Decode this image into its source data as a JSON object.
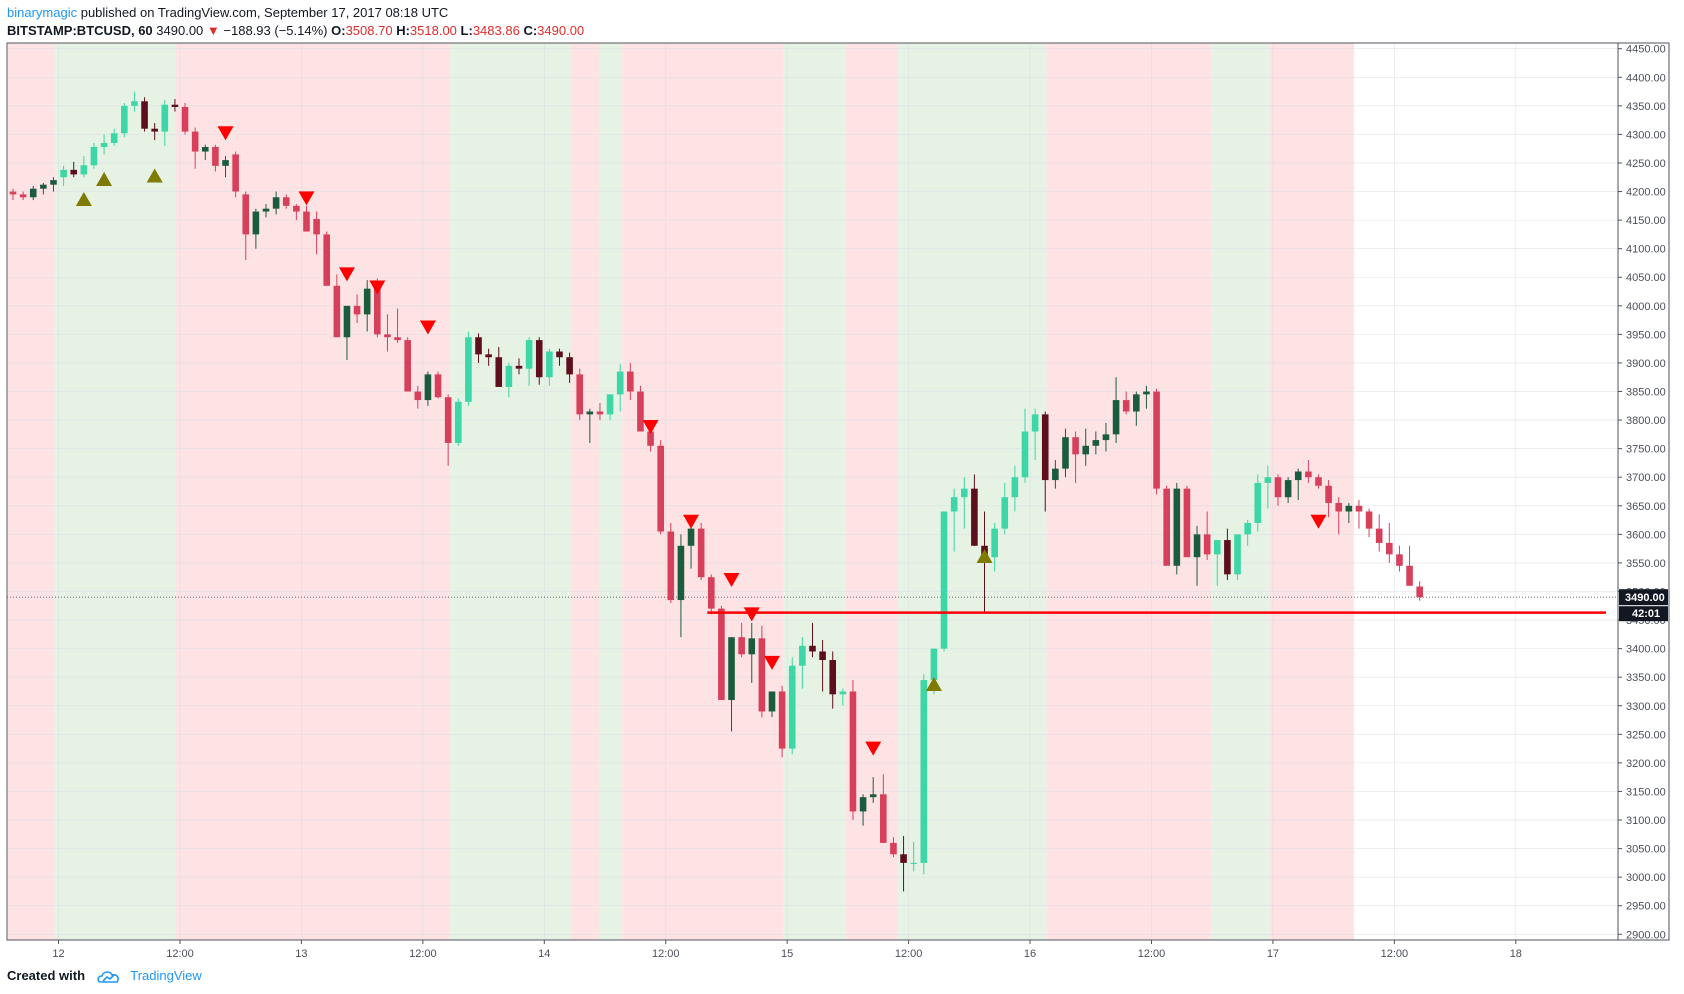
{
  "header": {
    "author": "binarymagic",
    "published": "published on TradingView.com, September 17, 2017 08:18 UTC",
    "symbol": "BITSTAMP:BTCUSD, 60",
    "last": "3490.00",
    "change_arrow": "▼",
    "change": "−188.93 (−5.14%)",
    "o_label": "O:",
    "o": "3508.70",
    "h_label": "H:",
    "h": "3518.00",
    "l_label": "L:",
    "l": "3483.86",
    "c_label": "C:",
    "c": "3490.00"
  },
  "footer": {
    "created": "Created with",
    "brand": "TradingView",
    "logo_icon": "tradingview-cloud-icon"
  },
  "colors": {
    "up": "#3dd6a6",
    "down": "#d6405b",
    "up_dark": "#1c5c3e",
    "down_dark": "#5e0f1d",
    "bg_red": "#fde3e4",
    "bg_green": "#e6f2e4",
    "signal_down": "#ff0000",
    "signal_up": "#7f7a00",
    "support_line": "#ff0000"
  },
  "chart_data": {
    "type": "candlestick",
    "symbol": "BITSTAMP:BTCUSD",
    "interval": "60",
    "ylim": [
      2890,
      4460
    ],
    "y_ticks": [
      "2900.00",
      "2950.00",
      "3000.00",
      "3050.00",
      "3100.00",
      "3150.00",
      "3200.00",
      "3250.00",
      "3300.00",
      "3350.00",
      "3400.00",
      "3450.00",
      "3500.00",
      "3550.00",
      "3600.00",
      "3650.00",
      "3700.00",
      "3750.00",
      "3800.00",
      "3850.00",
      "3900.00",
      "3950.00",
      "4000.00",
      "4050.00",
      "4100.00",
      "4150.00",
      "4200.00",
      "4250.00",
      "4300.00",
      "4350.00",
      "4400.00",
      "4450.00"
    ],
    "x_ticks": [
      {
        "label": "12",
        "slot": 4.5
      },
      {
        "label": "12:00",
        "slot": 16.5
      },
      {
        "label": "13",
        "slot": 28.5
      },
      {
        "label": "12:00",
        "slot": 40.5
      },
      {
        "label": "14",
        "slot": 52.5
      },
      {
        "label": "12:00",
        "slot": 64.5
      },
      {
        "label": "15",
        "slot": 76.5
      },
      {
        "label": "12:00",
        "slot": 88.5
      },
      {
        "label": "16",
        "slot": 100.5
      },
      {
        "label": "12:00",
        "slot": 112.5
      },
      {
        "label": "17",
        "slot": 124.5
      },
      {
        "label": "12:00",
        "slot": 136.5
      },
      {
        "label": "18",
        "slot": 148.5
      }
    ],
    "last_price_label": "3490.00",
    "countdown_label": "42:01",
    "support_level": 3463,
    "support_label": "3463",
    "support_from_slot": 69,
    "last_price": 3490,
    "candles": [
      [
        4200,
        4205,
        4185,
        4195
      ],
      [
        4195,
        4200,
        4185,
        4190
      ],
      [
        4190,
        4210,
        4185,
        4205
      ],
      [
        4205,
        4215,
        4195,
        4212
      ],
      [
        4212,
        4225,
        4200,
        4220
      ],
      [
        4225,
        4245,
        4210,
        4238
      ],
      [
        4238,
        4252,
        4225,
        4230
      ],
      [
        4230,
        4262,
        4225,
        4246
      ],
      [
        4246,
        4285,
        4240,
        4278
      ],
      [
        4278,
        4300,
        4265,
        4285
      ],
      [
        4285,
        4310,
        4280,
        4302
      ],
      [
        4302,
        4355,
        4295,
        4350
      ],
      [
        4350,
        4375,
        4340,
        4358
      ],
      [
        4358,
        4365,
        4305,
        4310
      ],
      [
        4310,
        4320,
        4290,
        4305
      ],
      [
        4305,
        4360,
        4280,
        4352
      ],
      [
        4352,
        4362,
        4340,
        4348
      ],
      [
        4348,
        4355,
        4300,
        4305
      ],
      [
        4305,
        4312,
        4240,
        4270
      ],
      [
        4270,
        4282,
        4255,
        4278
      ],
      [
        4278,
        4282,
        4235,
        4245
      ],
      [
        4245,
        4262,
        4225,
        4255
      ],
      [
        4265,
        4270,
        4190,
        4200
      ],
      [
        4195,
        4200,
        4080,
        4125
      ],
      [
        4125,
        4170,
        4100,
        4165
      ],
      [
        4165,
        4178,
        4155,
        4170
      ],
      [
        4170,
        4200,
        4160,
        4190
      ],
      [
        4190,
        4195,
        4170,
        4175
      ],
      [
        4175,
        4178,
        4150,
        4165
      ],
      [
        4165,
        4175,
        4130,
        4130
      ],
      [
        4152,
        4165,
        4090,
        4125
      ],
      [
        4125,
        4130,
        4050,
        4035
      ],
      [
        4035,
        4055,
        3945,
        3945
      ],
      [
        3945,
        3990,
        3905,
        4000
      ],
      [
        4000,
        4020,
        3970,
        3985
      ],
      [
        3985,
        4045,
        3955,
        4030
      ],
      [
        4040,
        4048,
        3945,
        3950
      ],
      [
        3950,
        3985,
        3920,
        3945
      ],
      [
        3945,
        3995,
        3935,
        3940
      ],
      [
        3940,
        3945,
        3850,
        3850
      ],
      [
        3850,
        3860,
        3820,
        3835
      ],
      [
        3835,
        3885,
        3825,
        3880
      ],
      [
        3880,
        3885,
        3838,
        3840
      ],
      [
        3840,
        3845,
        3720,
        3760
      ],
      [
        3760,
        3838,
        3755,
        3832
      ],
      [
        3832,
        3955,
        3825,
        3945
      ],
      [
        3945,
        3952,
        3900,
        3915
      ],
      [
        3915,
        3925,
        3895,
        3910
      ],
      [
        3910,
        3928,
        3870,
        3858
      ],
      [
        3858,
        3900,
        3840,
        3895
      ],
      [
        3895,
        3908,
        3880,
        3890
      ],
      [
        3890,
        3945,
        3860,
        3940
      ],
      [
        3940,
        3945,
        3862,
        3875
      ],
      [
        3875,
        3925,
        3860,
        3920
      ],
      [
        3920,
        3925,
        3895,
        3910
      ],
      [
        3910,
        3918,
        3865,
        3880
      ],
      [
        3880,
        3890,
        3800,
        3810
      ],
      [
        3810,
        3820,
        3760,
        3815
      ],
      [
        3815,
        3830,
        3800,
        3810
      ],
      [
        3810,
        3845,
        3800,
        3845
      ],
      [
        3845,
        3898,
        3815,
        3885
      ],
      [
        3885,
        3900,
        3835,
        3850
      ],
      [
        3850,
        3860,
        3780,
        3780
      ],
      [
        3780,
        3785,
        3745,
        3755
      ],
      [
        3755,
        3765,
        3600,
        3605
      ],
      [
        3605,
        3620,
        3480,
        3485
      ],
      [
        3485,
        3600,
        3420,
        3580
      ],
      [
        3580,
        3625,
        3540,
        3610
      ],
      [
        3610,
        3620,
        3520,
        3525
      ],
      [
        3525,
        3530,
        3460,
        3470
      ],
      [
        3470,
        3475,
        3310,
        3310
      ],
      [
        3310,
        3420,
        3255,
        3420
      ],
      [
        3420,
        3445,
        3385,
        3390
      ],
      [
        3390,
        3445,
        3340,
        3418
      ],
      [
        3418,
        3440,
        3280,
        3290
      ],
      [
        3290,
        3320,
        3280,
        3325
      ],
      [
        3325,
        3335,
        3210,
        3225
      ],
      [
        3225,
        3385,
        3215,
        3370
      ],
      [
        3370,
        3420,
        3330,
        3405
      ],
      [
        3405,
        3445,
        3385,
        3395
      ],
      [
        3395,
        3415,
        3325,
        3380
      ],
      [
        3380,
        3395,
        3295,
        3320
      ],
      [
        3320,
        3330,
        3300,
        3325
      ],
      [
        3325,
        3345,
        3100,
        3115
      ],
      [
        3115,
        3145,
        3090,
        3140
      ],
      [
        3140,
        3175,
        3130,
        3145
      ],
      [
        3145,
        3180,
        3060,
        3060
      ],
      [
        3060,
        3070,
        3035,
        3040
      ],
      [
        3040,
        3072,
        2975,
        3025
      ],
      [
        3025,
        3062,
        3010,
        3025
      ],
      [
        3025,
        3355,
        3005,
        3345
      ],
      [
        3345,
        3400,
        3320,
        3400
      ],
      [
        3400,
        3640,
        3395,
        3640
      ],
      [
        3640,
        3680,
        3570,
        3665
      ],
      [
        3665,
        3700,
        3610,
        3680
      ],
      [
        3680,
        3705,
        3580,
        3580
      ],
      [
        3580,
        3640,
        3465,
        3560
      ],
      [
        3560,
        3620,
        3535,
        3610
      ],
      [
        3610,
        3690,
        3600,
        3665
      ],
      [
        3665,
        3720,
        3640,
        3700
      ],
      [
        3700,
        3820,
        3690,
        3780
      ],
      [
        3780,
        3820,
        3730,
        3810
      ],
      [
        3810,
        3815,
        3640,
        3695
      ],
      [
        3695,
        3730,
        3680,
        3715
      ],
      [
        3715,
        3785,
        3700,
        3770
      ],
      [
        3770,
        3780,
        3690,
        3740
      ],
      [
        3740,
        3785,
        3720,
        3755
      ],
      [
        3755,
        3780,
        3740,
        3765
      ],
      [
        3765,
        3795,
        3745,
        3775
      ],
      [
        3775,
        3875,
        3760,
        3835
      ],
      [
        3835,
        3850,
        3810,
        3815
      ],
      [
        3815,
        3850,
        3790,
        3845
      ],
      [
        3845,
        3860,
        3820,
        3850
      ],
      [
        3850,
        3855,
        3670,
        3680
      ],
      [
        3680,
        3685,
        3550,
        3545
      ],
      [
        3545,
        3690,
        3530,
        3680
      ],
      [
        3680,
        3685,
        3560,
        3560
      ],
      [
        3560,
        3615,
        3510,
        3600
      ],
      [
        3600,
        3640,
        3555,
        3565
      ],
      [
        3565,
        3590,
        3510,
        3590
      ],
      [
        3590,
        3610,
        3520,
        3530
      ],
      [
        3530,
        3590,
        3520,
        3600
      ],
      [
        3600,
        3625,
        3580,
        3620
      ],
      [
        3620,
        3705,
        3605,
        3690
      ],
      [
        3690,
        3720,
        3645,
        3700
      ],
      [
        3700,
        3705,
        3650,
        3665
      ],
      [
        3665,
        3700,
        3655,
        3695
      ],
      [
        3695,
        3715,
        3660,
        3710
      ],
      [
        3710,
        3730,
        3690,
        3700
      ],
      [
        3700,
        3705,
        3680,
        3685
      ],
      [
        3685,
        3695,
        3630,
        3655
      ],
      [
        3655,
        3665,
        3600,
        3640
      ],
      [
        3640,
        3655,
        3620,
        3650
      ],
      [
        3650,
        3660,
        3610,
        3640
      ],
      [
        3640,
        3645,
        3595,
        3610
      ],
      [
        3610,
        3635,
        3570,
        3585
      ],
      [
        3585,
        3620,
        3550,
        3565
      ],
      [
        3565,
        3580,
        3535,
        3545
      ],
      [
        3545,
        3580,
        3510,
        3510
      ],
      [
        3508.7,
        3518,
        3483.86,
        3490
      ]
    ],
    "signals_down": [
      {
        "slot": 21,
        "price": 4302
      },
      {
        "slot": 29,
        "price": 4188
      },
      {
        "slot": 33,
        "price": 4055
      },
      {
        "slot": 36,
        "price": 4032
      },
      {
        "slot": 41,
        "price": 3962
      },
      {
        "slot": 63,
        "price": 3788
      },
      {
        "slot": 67,
        "price": 3622
      },
      {
        "slot": 71,
        "price": 3520
      },
      {
        "slot": 73,
        "price": 3460
      },
      {
        "slot": 75,
        "price": 3375
      },
      {
        "slot": 85,
        "price": 3225
      },
      {
        "slot": 129,
        "price": 3622
      }
    ],
    "signals_up": [
      {
        "slot": 7,
        "price": 4187
      },
      {
        "slot": 9,
        "price": 4222
      },
      {
        "slot": 14,
        "price": 4228
      },
      {
        "slot": 91,
        "price": 3338
      },
      {
        "slot": 96,
        "price": 3562
      }
    ],
    "background_zones": [
      {
        "from": 0,
        "to": 4.6,
        "color": "red"
      },
      {
        "from": 4.6,
        "to": 16.5,
        "color": "green"
      },
      {
        "from": 16.5,
        "to": 43.7,
        "color": "red"
      },
      {
        "from": 43.7,
        "to": 55.6,
        "color": "green"
      },
      {
        "from": 55.6,
        "to": 58.4,
        "color": "red"
      },
      {
        "from": 58.4,
        "to": 60.7,
        "color": "green"
      },
      {
        "from": 60.7,
        "to": 76.6,
        "color": "red"
      },
      {
        "from": 76.6,
        "to": 82.8,
        "color": "green"
      },
      {
        "from": 82.8,
        "to": 87.9,
        "color": "red"
      },
      {
        "from": 87.9,
        "to": 102.6,
        "color": "green"
      },
      {
        "from": 102.6,
        "to": 118.9,
        "color": "red"
      },
      {
        "from": 118.9,
        "to": 124.7,
        "color": "green"
      },
      {
        "from": 124.7,
        "to": 133,
        "color": "red"
      }
    ]
  }
}
